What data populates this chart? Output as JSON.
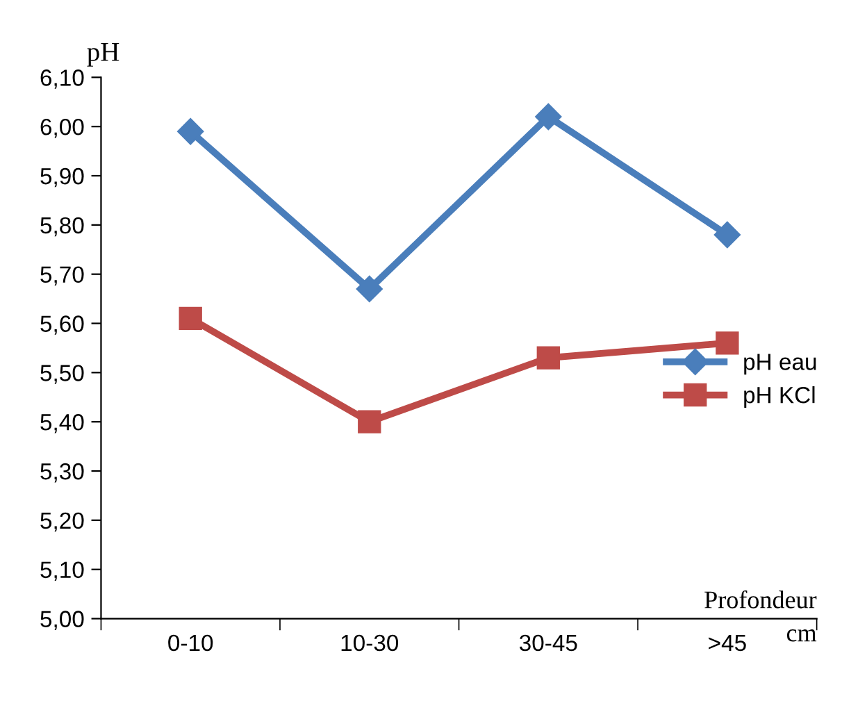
{
  "chart_data": {
    "type": "line",
    "ylabel": "pH",
    "xlabel": "Profondeur\ncm",
    "categories": [
      "0-10",
      "10-30",
      "30-45",
      ">45"
    ],
    "series": [
      {
        "name": "pH eau",
        "color": "#4a7ebb",
        "marker": "diamond",
        "values": [
          5.99,
          5.67,
          6.02,
          5.78
        ]
      },
      {
        "name": "pH KCl",
        "color": "#be4b48",
        "marker": "square",
        "values": [
          5.61,
          5.4,
          5.53,
          5.56
        ]
      }
    ],
    "ylim": [
      5.0,
      6.1
    ],
    "yticks": [
      {
        "value": 5.0,
        "label": "5,00"
      },
      {
        "value": 5.1,
        "label": "5,10"
      },
      {
        "value": 5.2,
        "label": "5,20"
      },
      {
        "value": 5.3,
        "label": "5,30"
      },
      {
        "value": 5.4,
        "label": "5,40"
      },
      {
        "value": 5.5,
        "label": "5,50"
      },
      {
        "value": 5.6,
        "label": "5,60"
      },
      {
        "value": 5.7,
        "label": "5,70"
      },
      {
        "value": 5.8,
        "label": "5,80"
      },
      {
        "value": 5.9,
        "label": "5,90"
      },
      {
        "value": 6.0,
        "label": "6,00"
      },
      {
        "value": 6.1,
        "label": "6,10"
      }
    ],
    "grid": false,
    "legend": "right",
    "line_style": "solid"
  }
}
